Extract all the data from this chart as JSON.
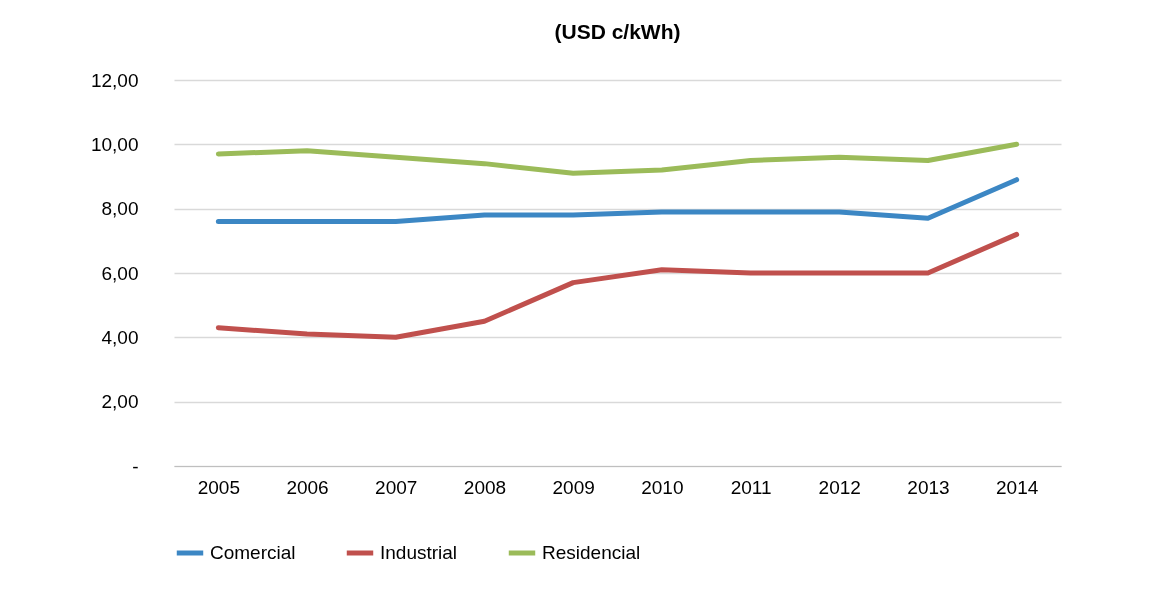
{
  "chart_data": {
    "type": "line",
    "title": "(USD c/kWh)",
    "categories": [
      "2005",
      "2006",
      "2007",
      "2008",
      "2009",
      "2010",
      "2011",
      "2012",
      "2013",
      "2014"
    ],
    "series": [
      {
        "name": "Comercial",
        "color": "#3c87c4",
        "values": [
          7.6,
          7.6,
          7.6,
          7.8,
          7.8,
          7.9,
          7.9,
          7.9,
          7.7,
          8.9
        ]
      },
      {
        "name": "Industrial",
        "color": "#c0504d",
        "values": [
          4.3,
          4.1,
          4.0,
          4.5,
          5.7,
          6.1,
          6.0,
          6.0,
          6.0,
          7.2
        ]
      },
      {
        "name": "Residencial",
        "color": "#9bbb59",
        "values": [
          9.7,
          9.8,
          9.6,
          9.4,
          9.1,
          9.2,
          9.5,
          9.6,
          9.5,
          10.0
        ]
      }
    ],
    "ylim": [
      0,
      12
    ],
    "yticks": [
      {
        "value": 0,
        "label": "-"
      },
      {
        "value": 2,
        "label": "2,00"
      },
      {
        "value": 4,
        "label": "4,00"
      },
      {
        "value": 6,
        "label": "6,00"
      },
      {
        "value": 8,
        "label": "8,00"
      },
      {
        "value": 10,
        "label": "10,00"
      },
      {
        "value": 12,
        "label": "12,00"
      }
    ],
    "grid": "y",
    "legend": "bottom",
    "marker": "none",
    "line_style": "solid"
  }
}
